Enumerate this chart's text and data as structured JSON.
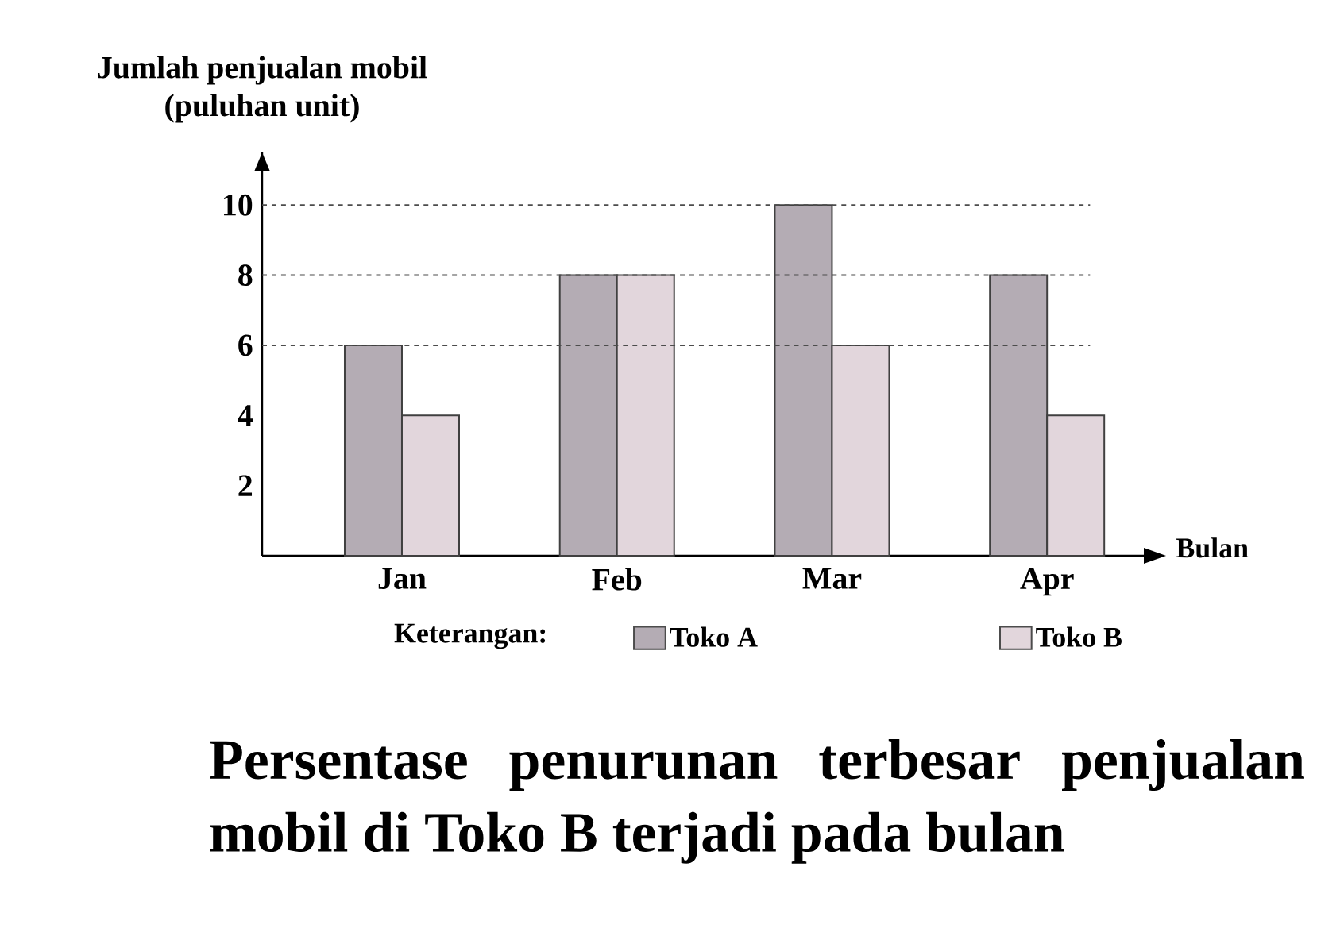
{
  "chart_data": {
    "type": "bar",
    "ylabel": "Jumlah penjualan mobil\n(puluhan unit)",
    "xlabel": "Bulan",
    "categories": [
      "Jan",
      "Feb",
      "Mar",
      "Apr"
    ],
    "series": [
      {
        "name": "Toko A",
        "color": "#b4acb4",
        "values": [
          6,
          8,
          10,
          8
        ]
      },
      {
        "name": "Toko B",
        "color": "#e2d6dc",
        "values": [
          4,
          8,
          6,
          4
        ]
      }
    ],
    "ylim": [
      0,
      11.5
    ],
    "yticks": [
      2,
      4,
      6,
      8,
      10
    ],
    "legend": "bottom",
    "legend_title": "Keterangan:",
    "ref_lines": [
      {
        "axis": "y",
        "value": 10,
        "line_style": "dashed"
      },
      {
        "axis": "y",
        "value": 8,
        "line_style": "dashed"
      },
      {
        "axis": "y",
        "value": 6,
        "line_style": "dashed"
      }
    ],
    "annotations": [
      "Persentase penurunan terbesar penjualan mobil di Toko B terjadi pada bulan"
    ]
  }
}
